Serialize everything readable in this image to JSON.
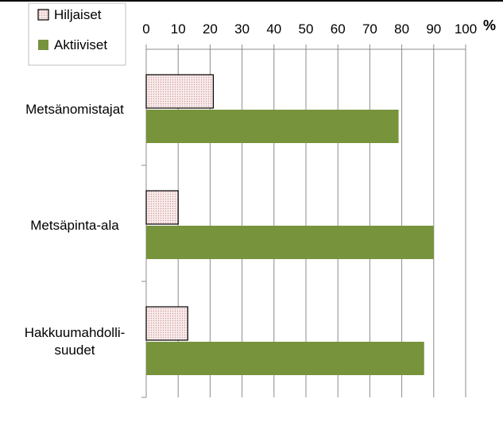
{
  "chart_data": {
    "type": "bar",
    "orientation": "horizontal",
    "categories": [
      [
        "Metsänomistajat"
      ],
      [
        "Metsäpinta-ala"
      ],
      [
        "Hakkuumahdolli-",
        "suudet"
      ]
    ],
    "series": [
      {
        "name": "Hiljaiset",
        "values": [
          21,
          10,
          13
        ],
        "color": "#f4dcdc",
        "pattern": "dotted"
      },
      {
        "name": "Aktiiviset",
        "values": [
          79,
          90,
          87
        ],
        "color": "#77933c"
      }
    ],
    "xlim": [
      0,
      100
    ],
    "xticks": [
      0,
      10,
      20,
      30,
      40,
      50,
      60,
      70,
      80,
      90,
      100
    ],
    "unit": "%",
    "axis_position": "top",
    "gridlines": true,
    "legend": "top-left"
  }
}
